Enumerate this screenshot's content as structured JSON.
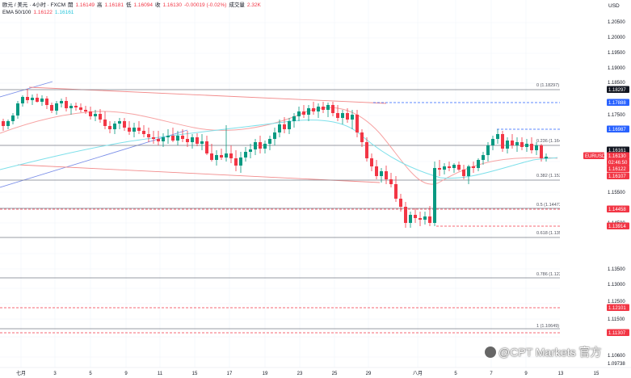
{
  "header": {
    "symbol": "欧元 / 美元 · 4小时 · FXCM",
    "open_label": "開",
    "open": "1.16149",
    "high_label": "高",
    "high": "1.16181",
    "low_label": "低",
    "low": "1.16094",
    "close_label": "收",
    "close": "1.16130",
    "change": "-0.00019 (-0.02%)",
    "volume_label": "成交量",
    "volume": "2.32K",
    "ema_label": "EMA 50/100",
    "ema_fast": "1.16122",
    "ema_slow": "1.16161"
  },
  "currency_label": "USD",
  "price_axis": [
    "1.20500",
    "1.20000",
    "1.19500",
    "1.19000",
    "1.18500",
    "1.17500",
    "1.15500",
    "1.15000",
    "1.14500",
    "1.13500",
    "1.13000",
    "1.12500",
    "1.11500",
    "1.11000",
    "1.10600",
    "1.09738"
  ],
  "price_tags": [
    {
      "label": "1.18297",
      "color": "#131722"
    },
    {
      "label": "1.17888",
      "color": "#2962ff"
    },
    {
      "label": "1.16987",
      "color": "#2962ff"
    },
    {
      "label": "1.16161",
      "color": "#131722"
    },
    {
      "label": "EURUSD",
      "color": "#f23645"
    },
    {
      "label": "1.16130",
      "color": "#f23645"
    },
    {
      "label": "02:46:50",
      "color": "#f23645"
    },
    {
      "label": "1.16122",
      "color": "#f23645"
    },
    {
      "label": "1.16107",
      "color": "#f23645"
    },
    {
      "label": "1.14458",
      "color": "#f23645"
    },
    {
      "label": "1.13914",
      "color": "#f23645"
    },
    {
      "label": "1.12101",
      "color": "#f23645"
    },
    {
      "label": "1.11307",
      "color": "#f23645"
    }
  ],
  "fib_levels": [
    {
      "label": "0 (1.18297)"
    },
    {
      "label": "0.236 (1.16492)"
    },
    {
      "label": "0.382 (1.15375)"
    },
    {
      "label": "0.5 (1.14473)"
    },
    {
      "label": "0.618 (1.13571)"
    },
    {
      "label": "0.786 (1.12286)"
    },
    {
      "label": "1 (1.10649)"
    }
  ],
  "time_axis": [
    "七月",
    "3",
    "5",
    "9",
    "11",
    "15",
    "17",
    "19",
    "23",
    "25",
    "29",
    "八月",
    "5",
    "7",
    "9",
    "13",
    "15"
  ],
  "watermark": "@CPT Markets 官方",
  "colors": {
    "up": "#089981",
    "down": "#f23645",
    "ema_fast": "#f7a3a3",
    "ema_slow": "#7ee0ea",
    "trend_blue": "#7b8fe8",
    "channel_red": "#f28b8b"
  }
}
